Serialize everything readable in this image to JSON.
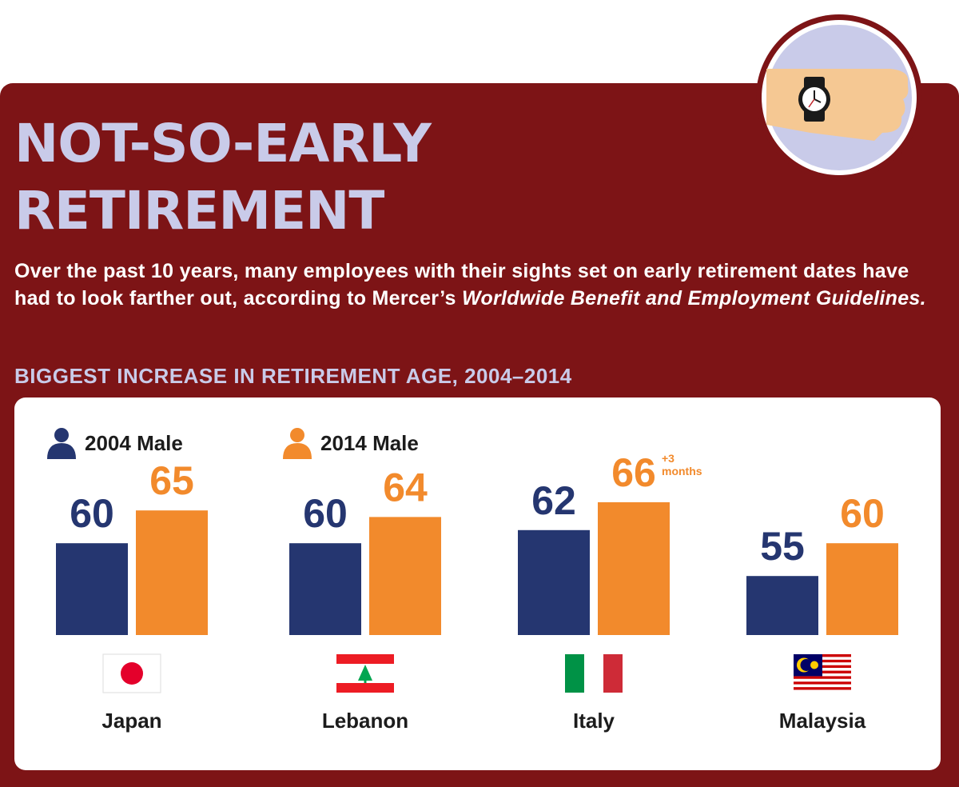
{
  "header": {
    "title_line1": "NOT-SO-EARLY",
    "title_line2": "RETIREMENT",
    "intro_plain": "Over the past 10 years, many employees with their sights set on early retirement dates have had to look farther out, according to Mercer’s ",
    "intro_italic": "Worldwide Benefit and Employment Guidelines.",
    "subtitle": "BIGGEST INCREASE IN RETIREMENT AGE, 2004–2014"
  },
  "colors": {
    "background": "#7d1416",
    "title": "#c9cbe9",
    "series_2004": "#253670",
    "series_2014": "#f28a2c"
  },
  "chart_data": {
    "type": "bar",
    "title": "BIGGEST INCREASE IN RETIREMENT AGE, 2004–2014",
    "categories": [
      "Japan",
      "Lebanon",
      "Italy",
      "Malaysia"
    ],
    "series": [
      {
        "name": "2004 Male",
        "values": [
          60,
          60,
          62,
          55
        ],
        "labels": [
          "60",
          "60",
          "62",
          "55"
        ]
      },
      {
        "name": "2014 Male",
        "values": [
          65,
          64,
          66.25,
          60
        ],
        "labels": [
          "65",
          "64",
          "66",
          "60"
        ]
      }
    ],
    "annotations": [
      {
        "category": "Italy",
        "series": "2014 Male",
        "text_line1": "+3",
        "text_line2": "months"
      }
    ],
    "flags": [
      "japan-flag-icon",
      "lebanon-flag-icon",
      "italy-flag-icon",
      "malaysia-flag-icon"
    ],
    "legend": "top-left",
    "grid": false
  }
}
